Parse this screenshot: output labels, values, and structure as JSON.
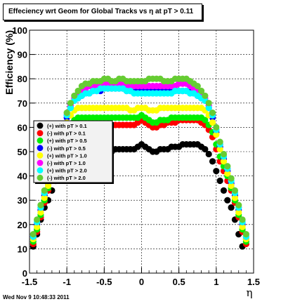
{
  "title": "Effeciency wrt Geom for Global Tracks vs   η at pT > 0.11",
  "footer": "Wed Nov  9 10:48:33 2011",
  "chart_data": {
    "type": "scatter",
    "title": "Effeciency wrt Geom for Global Tracks vs   η at pT > 0.11",
    "xlabel": "η",
    "ylabel": "Efficiency (%)",
    "xlim": [
      -1.5,
      1.5
    ],
    "ylim": [
      0,
      100
    ],
    "x_ticks": [
      "-1.5",
      "-1",
      "-0.5",
      "0",
      "0.5",
      "1",
      "1.5"
    ],
    "y_ticks": [
      "0",
      "10",
      "20",
      "30",
      "40",
      "50",
      "60",
      "70",
      "80",
      "90",
      "100"
    ],
    "grid": true,
    "legend_position": "left-middle",
    "series": [
      {
        "name": "(+) with pT > 0.1",
        "color": "#000000",
        "x": [
          -1.45,
          -1.4,
          -1.35,
          -1.3,
          -1.25,
          -1.2,
          -1.15,
          -1.1,
          -1.05,
          -1.0,
          -0.95,
          -0.9,
          -0.85,
          -0.8,
          -0.75,
          -0.7,
          -0.65,
          -0.6,
          -0.55,
          -0.5,
          -0.45,
          -0.4,
          -0.35,
          -0.3,
          -0.25,
          -0.2,
          -0.15,
          -0.1,
          -0.05,
          0.0,
          0.05,
          0.1,
          0.15,
          0.2,
          0.25,
          0.3,
          0.35,
          0.4,
          0.45,
          0.5,
          0.55,
          0.6,
          0.65,
          0.7,
          0.75,
          0.8,
          0.85,
          0.9,
          0.95,
          1.0,
          1.05,
          1.1,
          1.15,
          1.2,
          1.25,
          1.3,
          1.35,
          1.4,
          1.45
        ],
        "y": [
          11,
          16,
          22,
          27,
          30,
          34,
          38,
          42,
          46,
          49,
          52,
          53,
          53,
          53,
          53,
          53,
          53,
          52,
          52,
          51,
          51,
          50,
          51,
          51,
          51,
          51,
          51,
          51,
          52,
          53,
          52,
          51,
          50,
          50,
          51,
          51,
          51,
          52,
          52,
          52,
          53,
          53,
          53,
          53,
          53,
          52,
          51,
          49,
          46,
          42,
          38,
          34,
          30,
          27,
          22,
          16,
          11,
          null,
          null
        ]
      },
      {
        "name": "(-) with pT > 0.1",
        "color": "#ff0000",
        "x": [
          -1.45,
          -1.4,
          -1.35,
          -1.3,
          -1.25,
          -1.2,
          -1.15,
          -1.1,
          -1.05,
          -1.0,
          -0.95,
          -0.9,
          -0.85,
          -0.8,
          -0.75,
          -0.7,
          -0.65,
          -0.6,
          -0.55,
          -0.5,
          -0.45,
          -0.4,
          -0.35,
          -0.3,
          -0.25,
          -0.2,
          -0.15,
          -0.1,
          -0.05,
          0.0,
          0.05,
          0.1,
          0.15,
          0.2,
          0.25,
          0.3,
          0.35,
          0.4,
          0.45,
          0.5,
          0.55,
          0.6,
          0.65,
          0.7,
          0.75,
          0.8,
          0.85,
          0.9,
          0.95,
          1.0,
          1.05,
          1.1,
          1.15,
          1.2,
          1.25,
          1.3,
          1.35,
          1.4,
          1.45
        ],
        "y": [
          12,
          17,
          23,
          29,
          34,
          38,
          42,
          46,
          51,
          56,
          59,
          60,
          61,
          61,
          61,
          61,
          61,
          61,
          61,
          61,
          61,
          61,
          61,
          61,
          61,
          61,
          61,
          61,
          62,
          63,
          62,
          61,
          60,
          60,
          61,
          61,
          62,
          62,
          62,
          63,
          63,
          63,
          63,
          63,
          63,
          62,
          61,
          59,
          56,
          51,
          46,
          42,
          38,
          34,
          29,
          23,
          17,
          12,
          null
        ]
      },
      {
        "name": "(+) with pT > 0.5",
        "color": "#00ee00",
        "x": [
          -1.45,
          -1.4,
          -1.35,
          -1.3,
          -1.25,
          -1.2,
          -1.15,
          -1.1,
          -1.05,
          -1.0,
          -0.95,
          -0.9,
          -0.85,
          -0.8,
          -0.75,
          -0.7,
          -0.65,
          -0.6,
          -0.55,
          -0.5,
          -0.45,
          -0.4,
          -0.35,
          -0.3,
          -0.25,
          -0.2,
          -0.15,
          -0.1,
          -0.05,
          0.0,
          0.05,
          0.1,
          0.15,
          0.2,
          0.25,
          0.3,
          0.35,
          0.4,
          0.45,
          0.5,
          0.55,
          0.6,
          0.65,
          0.7,
          0.75,
          0.8,
          0.85,
          0.9,
          0.95,
          1.0,
          1.05,
          1.1,
          1.15,
          1.2,
          1.25,
          1.3,
          1.35,
          1.4,
          1.45
        ],
        "y": [
          13,
          18,
          24,
          30,
          35,
          40,
          44,
          48,
          53,
          58,
          61,
          63,
          64,
          64,
          64,
          64,
          64,
          64,
          64,
          64,
          64,
          64,
          64,
          64,
          64,
          64,
          64,
          64,
          64,
          65,
          64,
          63,
          62,
          62,
          63,
          63,
          63,
          64,
          64,
          64,
          64,
          64,
          64,
          64,
          64,
          64,
          63,
          61,
          58,
          53,
          48,
          44,
          40,
          35,
          30,
          24,
          18,
          13,
          null
        ]
      },
      {
        "name": "(-) with pT > 0.5",
        "color": "#0000ff",
        "x": [
          -1.45,
          -1.4,
          -1.35,
          -1.3,
          -1.25,
          -1.2,
          -1.15,
          -1.1,
          -1.05,
          -1.0,
          -0.95,
          -0.9,
          -0.85,
          -0.8,
          -0.75,
          -0.7,
          -0.65,
          -0.6,
          -0.55,
          -0.5,
          -0.45,
          -0.4,
          -0.35,
          -0.3,
          -0.25,
          -0.2,
          -0.15,
          -0.1,
          -0.05,
          0.0,
          0.05,
          0.1,
          0.15,
          0.2,
          0.25,
          0.3,
          0.35,
          0.4,
          0.45,
          0.5,
          0.55,
          0.6,
          0.65,
          0.7,
          0.75,
          0.8,
          0.85,
          0.9,
          0.95,
          1.0,
          1.05,
          1.1,
          1.15,
          1.2,
          1.25,
          1.3,
          1.35,
          1.4,
          1.45
        ],
        "y": [
          14,
          20,
          26,
          32,
          37,
          42,
          47,
          52,
          58,
          64,
          68,
          71,
          72,
          73,
          74,
          74,
          75,
          75,
          75,
          76,
          76,
          76,
          76,
          76,
          76,
          75,
          75,
          75,
          75,
          75,
          75,
          75,
          75,
          75,
          75,
          75,
          75,
          75,
          75,
          75,
          75,
          75,
          75,
          74,
          73,
          72,
          71,
          68,
          64,
          58,
          52,
          47,
          42,
          37,
          32,
          26,
          20,
          14,
          null
        ]
      },
      {
        "name": "(+) with pT > 1.0",
        "color": "#ffff00",
        "x": [
          -1.45,
          -1.4,
          -1.35,
          -1.3,
          -1.25,
          -1.2,
          -1.15,
          -1.1,
          -1.05,
          -1.0,
          -0.95,
          -0.9,
          -0.85,
          -0.8,
          -0.75,
          -0.7,
          -0.65,
          -0.6,
          -0.55,
          -0.5,
          -0.45,
          -0.4,
          -0.35,
          -0.3,
          -0.25,
          -0.2,
          -0.15,
          -0.1,
          -0.05,
          0.0,
          0.05,
          0.1,
          0.15,
          0.2,
          0.25,
          0.3,
          0.35,
          0.4,
          0.45,
          0.5,
          0.55,
          0.6,
          0.65,
          0.7,
          0.75,
          0.8,
          0.85,
          0.9,
          0.95,
          1.0,
          1.05,
          1.1,
          1.15,
          1.2,
          1.25,
          1.3,
          1.35,
          1.4,
          1.45
        ],
        "y": [
          14,
          19,
          25,
          31,
          36,
          41,
          46,
          51,
          57,
          62,
          65,
          67,
          68,
          68,
          68,
          68,
          68,
          68,
          68,
          68,
          68,
          68,
          68,
          68,
          68,
          68,
          67,
          67,
          68,
          68,
          68,
          67,
          67,
          67,
          68,
          68,
          68,
          68,
          68,
          68,
          68,
          68,
          68,
          68,
          68,
          68,
          67,
          65,
          62,
          57,
          51,
          46,
          41,
          36,
          31,
          25,
          19,
          14,
          null
        ]
      },
      {
        "name": "(-) with pT > 1.0",
        "color": "#ff00ff",
        "x": [
          -1.45,
          -1.4,
          -1.35,
          -1.3,
          -1.25,
          -1.2,
          -1.15,
          -1.1,
          -1.05,
          -1.0,
          -0.95,
          -0.9,
          -0.85,
          -0.8,
          -0.75,
          -0.7,
          -0.65,
          -0.6,
          -0.55,
          -0.5,
          -0.45,
          -0.4,
          -0.35,
          -0.3,
          -0.25,
          -0.2,
          -0.15,
          -0.1,
          -0.05,
          0.0,
          0.05,
          0.1,
          0.15,
          0.2,
          0.25,
          0.3,
          0.35,
          0.4,
          0.45,
          0.5,
          0.55,
          0.6,
          0.65,
          0.7,
          0.75,
          0.8,
          0.85,
          0.9,
          0.95,
          1.0,
          1.05,
          1.1,
          1.15,
          1.2,
          1.25,
          1.3,
          1.35,
          1.4,
          1.45
        ],
        "y": [
          15,
          21,
          27,
          33,
          38,
          43,
          48,
          53,
          59,
          65,
          69,
          72,
          74,
          75,
          76,
          77,
          77,
          77,
          77,
          78,
          78,
          78,
          78,
          78,
          78,
          77,
          77,
          77,
          77,
          77,
          77,
          77,
          77,
          77,
          77,
          77,
          77,
          77,
          77,
          78,
          78,
          78,
          77,
          76,
          75,
          74,
          72,
          69,
          65,
          59,
          53,
          48,
          43,
          38,
          33,
          27,
          21,
          15,
          null
        ]
      },
      {
        "name": "(+) with pT > 2.0",
        "color": "#00ffff",
        "x": [
          -1.45,
          -1.4,
          -1.35,
          -1.3,
          -1.25,
          -1.2,
          -1.15,
          -1.1,
          -1.05,
          -1.0,
          -0.95,
          -0.9,
          -0.85,
          -0.8,
          -0.75,
          -0.7,
          -0.65,
          -0.6,
          -0.55,
          -0.5,
          -0.45,
          -0.4,
          -0.35,
          -0.3,
          -0.25,
          -0.2,
          -0.15,
          -0.1,
          -0.05,
          0.0,
          0.05,
          0.1,
          0.15,
          0.2,
          0.25,
          0.3,
          0.35,
          0.4,
          0.45,
          0.5,
          0.55,
          0.6,
          0.65,
          0.7,
          0.75,
          0.8,
          0.85,
          0.9,
          0.95,
          1.0,
          1.05,
          1.1,
          1.15,
          1.2,
          1.25,
          1.3,
          1.35,
          1.4,
          1.45
        ],
        "y": [
          15,
          21,
          27,
          33,
          38,
          43,
          48,
          53,
          59,
          65,
          68,
          71,
          72,
          73,
          74,
          74,
          75,
          75,
          76,
          76,
          76,
          76,
          76,
          76,
          76,
          75,
          75,
          74,
          74,
          74,
          74,
          74,
          74,
          74,
          74,
          74,
          74,
          74,
          75,
          75,
          75,
          75,
          74,
          74,
          73,
          72,
          71,
          68,
          65,
          59,
          53,
          48,
          43,
          38,
          33,
          27,
          21,
          15,
          null
        ]
      },
      {
        "name": "(-) with pT > 2.0",
        "color": "#66cc33",
        "x": [
          -1.45,
          -1.4,
          -1.35,
          -1.3,
          -1.25,
          -1.2,
          -1.15,
          -1.1,
          -1.05,
          -1.0,
          -0.95,
          -0.9,
          -0.85,
          -0.8,
          -0.75,
          -0.7,
          -0.65,
          -0.6,
          -0.55,
          -0.5,
          -0.45,
          -0.4,
          -0.35,
          -0.3,
          -0.25,
          -0.2,
          -0.15,
          -0.1,
          -0.05,
          0.0,
          0.05,
          0.1,
          0.15,
          0.2,
          0.25,
          0.3,
          0.35,
          0.4,
          0.45,
          0.5,
          0.55,
          0.6,
          0.65,
          0.7,
          0.75,
          0.8,
          0.85,
          0.9,
          0.95,
          1.0,
          1.05,
          1.1,
          1.15,
          1.2,
          1.25,
          1.3,
          1.35,
          1.4,
          1.45
        ],
        "y": [
          16,
          22,
          28,
          34,
          39,
          44,
          49,
          54,
          60,
          66,
          70,
          73,
          75,
          77,
          78,
          78,
          79,
          79,
          79,
          80,
          80,
          79,
          79,
          80,
          80,
          79,
          79,
          79,
          79,
          79,
          79,
          80,
          80,
          80,
          80,
          79,
          79,
          79,
          80,
          80,
          80,
          80,
          79,
          78,
          77,
          75,
          73,
          70,
          66,
          60,
          54,
          49,
          44,
          39,
          34,
          28,
          22,
          16,
          null
        ]
      }
    ]
  }
}
